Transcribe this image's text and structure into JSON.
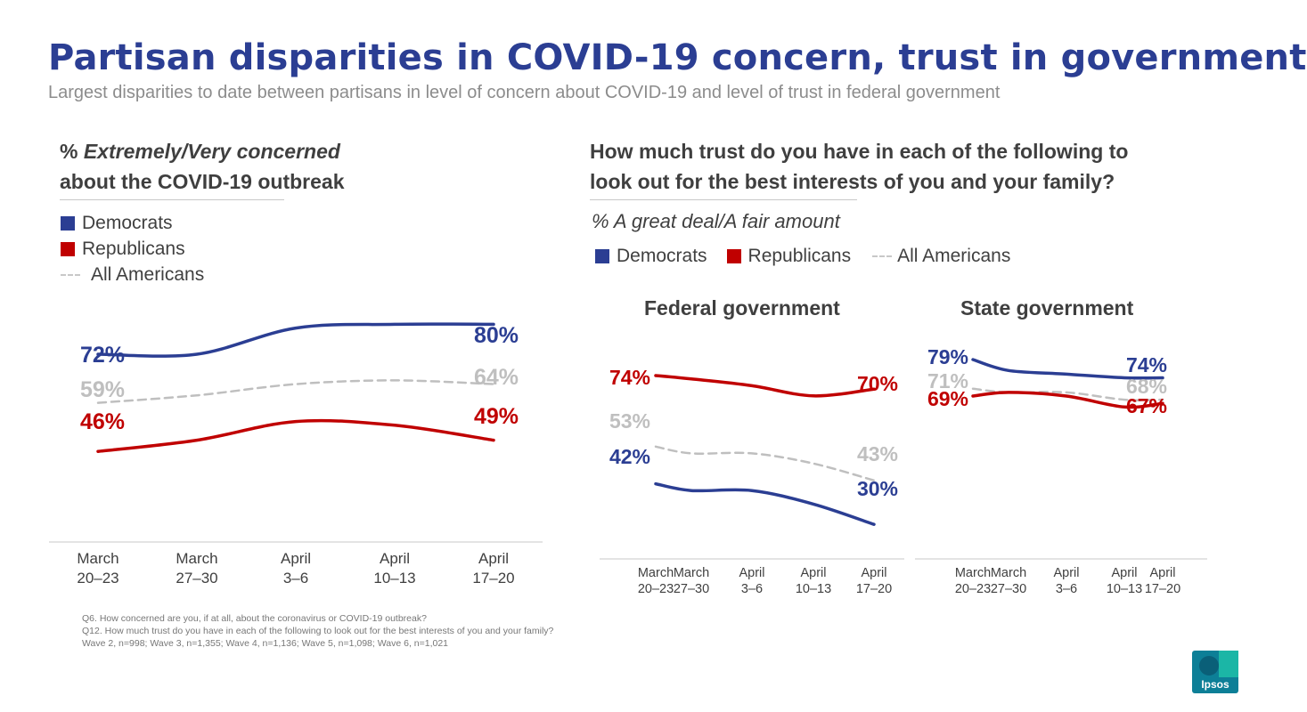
{
  "title": "Partisan disparities in COVID-19 concern, trust in government",
  "subtitle": "Largest disparities to date between partisans in level of concern about COVID-19 and level of trust in federal government",
  "left": {
    "heading_prefix": "% ",
    "heading_italic": "Extremely/Very concerned",
    "heading_line2": "about the COVID-19 outbreak"
  },
  "right": {
    "heading_line1": "How much trust do you have in each of the following to",
    "heading_line2": "look out for the best interests of you and your family?",
    "sub": "% A great deal/A fair amount"
  },
  "legend": {
    "democrats": "Democrats",
    "republicans": "Republicans",
    "all_americans": "All Americans"
  },
  "colors": {
    "dem": "#2b3e93",
    "rep": "#c00000",
    "all": "#bfbfbf"
  },
  "chart_data": [
    {
      "type": "line",
      "title": "% Extremely/Very concerned about the COVID-19 outbreak",
      "categories": [
        "March 20–23",
        "March 27–30",
        "April 3–6",
        "April 10–13",
        "April 17–20"
      ],
      "ylim": [
        0,
        100
      ],
      "series": [
        {
          "name": "Democrats",
          "values": [
            72,
            72,
            79,
            80,
            80
          ],
          "start_label": "72%",
          "end_label": "80%"
        },
        {
          "name": "All Americans",
          "values": [
            59,
            61,
            64,
            65,
            64
          ],
          "start_label": "59%",
          "end_label": "64%"
        },
        {
          "name": "Republicans",
          "values": [
            46,
            49,
            54,
            53,
            49
          ],
          "start_label": "46%",
          "end_label": "49%"
        }
      ]
    },
    {
      "type": "line",
      "title": "Federal government",
      "categories": [
        "March 20–23",
        "March 27–30",
        "April 3–6",
        "April 10–13",
        "April 17–20"
      ],
      "ylim": [
        0,
        100
      ],
      "series": [
        {
          "name": "Republicans",
          "values": [
            74,
            73,
            71,
            68,
            70
          ],
          "start_label": "74%",
          "end_label": "70%"
        },
        {
          "name": "All Americans",
          "values": [
            53,
            51,
            51,
            48,
            43
          ],
          "start_label": "53%",
          "end_label": "43%"
        },
        {
          "name": "Democrats",
          "values": [
            42,
            40,
            40,
            36,
            30
          ],
          "start_label": "42%",
          "end_label": "30%"
        }
      ]
    },
    {
      "type": "line",
      "title": "State government",
      "categories": [
        "March 20–23",
        "March 27–30",
        "April 3–6",
        "April 10–13",
        "April 17–20"
      ],
      "ylim": [
        0,
        100
      ],
      "series": [
        {
          "name": "Democrats",
          "values": [
            79,
            76,
            75,
            74,
            74
          ],
          "start_label": "79%",
          "end_label": "74%"
        },
        {
          "name": "All Americans",
          "values": [
            71,
            70,
            70,
            68,
            68
          ],
          "start_label": "71%",
          "end_label": "68%"
        },
        {
          "name": "Republicans",
          "values": [
            69,
            70,
            69,
            66,
            67
          ],
          "start_label": "69%",
          "end_label": "67%"
        }
      ]
    }
  ],
  "footnotes": [
    "Q6. How concerned are you, if at all, about the coronavirus or COVID-19 outbreak?",
    "Q12. How much trust do you have in each of the following to look out for the best interests of you and your family?",
    "Wave 2, n=998; Wave 3, n=1,355; Wave 4, n=1,136; Wave 5, n=1,098; Wave 6, n=1,021"
  ],
  "logo": {
    "text": "Ipsos"
  }
}
